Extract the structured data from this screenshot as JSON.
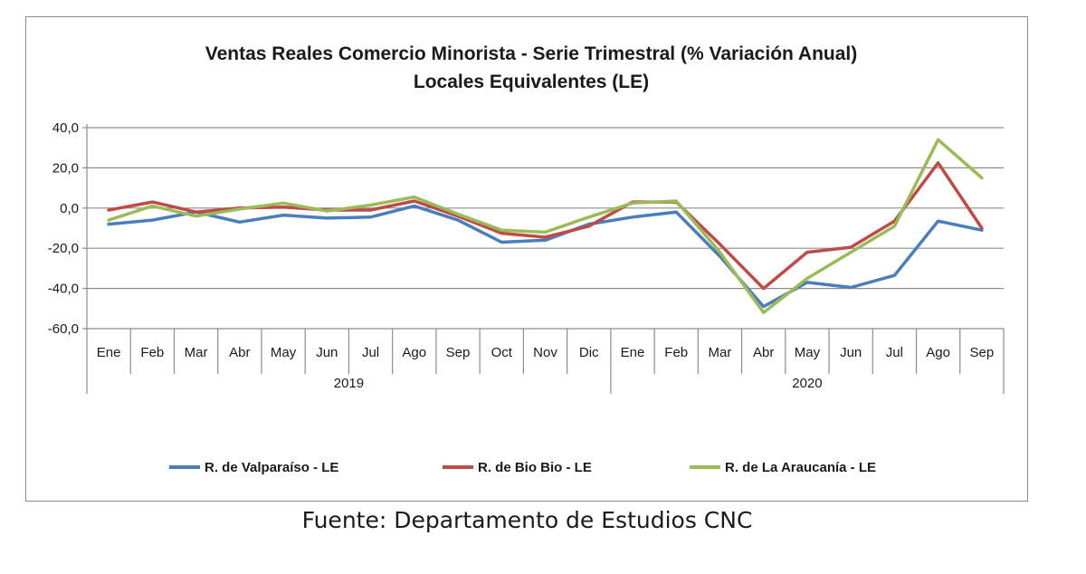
{
  "chart_data": {
    "type": "line",
    "title": "Ventas Reales Comercio Minorista - Serie Trimestral (% Variación Anual)",
    "subtitle": "Locales Equivalentes (LE)",
    "categories": [
      "Ene",
      "Feb",
      "Mar",
      "Abr",
      "May",
      "Jun",
      "Jul",
      "Ago",
      "Sep",
      "Oct",
      "Nov",
      "Dic",
      "Ene",
      "Feb",
      "Mar",
      "Abr",
      "May",
      "Jun",
      "Jul",
      "Ago",
      "Sep"
    ],
    "groups": [
      {
        "label": "2019",
        "span": 12
      },
      {
        "label": "2020",
        "span": 9
      }
    ],
    "ylim": [
      -60,
      40
    ],
    "yticks": [
      "40,0",
      "20,0",
      "0,0",
      "-20,0",
      "-40,0",
      "-60,0"
    ],
    "ytick_values": [
      40,
      20,
      0,
      -20,
      -40,
      -60
    ],
    "grid": true,
    "legend_position": "bottom",
    "series": [
      {
        "name": "R. de Valparaíso - LE",
        "color": "#4a7ebb",
        "values": [
          -8,
          -6,
          -2,
          -7,
          -3.5,
          -5,
          -4.5,
          1,
          -6,
          -17,
          -16,
          -8,
          -4.5,
          -2,
          -24,
          -49,
          -37,
          -39.5,
          -33.5,
          -6.5,
          -11
        ]
      },
      {
        "name": "R. de Bio Bio - LE",
        "color": "#be4b48",
        "values": [
          -1,
          3,
          -2,
          0,
          0.5,
          -1,
          -1,
          3.5,
          -4,
          -12.5,
          -14.5,
          -9,
          3,
          3,
          -18,
          -40,
          -22,
          -19.5,
          -6.5,
          22.5,
          -10
        ]
      },
      {
        "name": "R. de La Araucanía - LE",
        "color": "#9bbb59",
        "values": [
          -6,
          1,
          -4,
          -0.5,
          2.5,
          -1.5,
          1.5,
          5.5,
          -3,
          -11,
          -12,
          -4.5,
          2.5,
          3.5,
          -22,
          -52,
          -35,
          -22,
          -9,
          34,
          15
        ]
      }
    ]
  },
  "source": "Fuente: Departamento de Estudios CNC"
}
